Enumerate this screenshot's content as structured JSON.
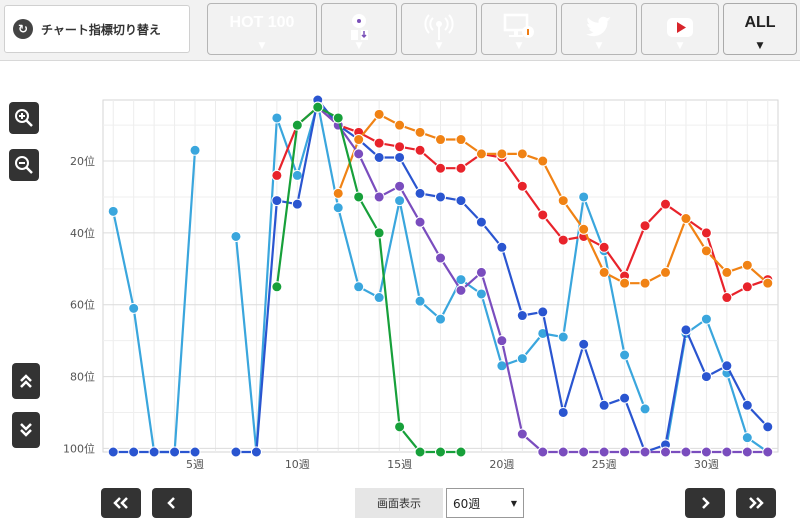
{
  "toolbar": {
    "switch_label": "チャート指標切り替え",
    "buttons": [
      {
        "key": "hot100",
        "label": "HOT 100",
        "color": "#2b4fd6",
        "icon": "text"
      },
      {
        "key": "sales",
        "label": "",
        "color": "#7a50b8",
        "icon": "cd-download-icon"
      },
      {
        "key": "radio",
        "label": "",
        "color": "#1fa23a",
        "icon": "radio-tower-icon"
      },
      {
        "key": "pc",
        "label": "",
        "color": "#ef7d14",
        "icon": "pc-lookup-icon"
      },
      {
        "key": "twitter",
        "label": "",
        "color": "#2aa3e6",
        "icon": "twitter-bird-icon"
      },
      {
        "key": "youtube",
        "label": "",
        "color": "#d8242b",
        "icon": "youtube-play-icon"
      },
      {
        "key": "all",
        "label": "ALL",
        "color": "#ffffff",
        "icon": "text"
      }
    ]
  },
  "controls": {
    "display_label": "画面表示",
    "period_value": "60週",
    "first_label": "«",
    "prev_label": "‹",
    "next_label": "›",
    "last_label": "»"
  },
  "chart_data": {
    "type": "line",
    "title": "",
    "xlabel": "",
    "ylabel": "",
    "x_ticks": [
      "5週",
      "10週",
      "15週",
      "20週",
      "25週",
      "30週"
    ],
    "y_ticks": [
      "20位",
      "40位",
      "60位",
      "80位",
      "100位"
    ],
    "xlim": [
      0.5,
      33.5
    ],
    "ylim": [
      101,
      3
    ],
    "x_unit": "週",
    "y_unit": "位",
    "y_inverted": true,
    "grid": true,
    "series": [
      {
        "color": "#3aa6dd",
        "x": [
          1,
          2,
          3,
          4,
          5,
          null,
          7,
          8,
          9,
          10,
          11,
          12,
          13,
          14,
          15,
          16,
          17,
          18,
          19,
          20,
          21,
          22,
          23,
          24,
          25,
          26,
          27
        ],
        "values": [
          34,
          61,
          101,
          101,
          17,
          null,
          41,
          101,
          8,
          24,
          4,
          33,
          55,
          58,
          31,
          59,
          64,
          53,
          57,
          77,
          75,
          68,
          69,
          30,
          45,
          74,
          89
        ]
      },
      {
        "color": "#3aa6dd",
        "x": [
          28,
          29,
          30,
          31,
          32,
          33
        ],
        "values": [
          101,
          68,
          64,
          79,
          97,
          101
        ]
      },
      {
        "color": "#2a55d0",
        "x": [
          1,
          2,
          3,
          4,
          5,
          null,
          7,
          8,
          9,
          10,
          11,
          12,
          13,
          14,
          15,
          16,
          17,
          18,
          19,
          20,
          21,
          22,
          23,
          24,
          25,
          26,
          27,
          28,
          29,
          30,
          31,
          32,
          33
        ],
        "values": [
          101,
          101,
          101,
          101,
          101,
          null,
          101,
          101,
          31,
          32,
          3,
          10,
          14,
          19,
          19,
          29,
          30,
          31,
          37,
          44,
          63,
          62,
          90,
          71,
          88,
          86,
          101,
          99,
          67,
          80,
          77,
          88,
          94
        ]
      },
      {
        "color": "#e8232b",
        "x": [
          9,
          10,
          11,
          12,
          13,
          14,
          15,
          16,
          17,
          18,
          19,
          20,
          21,
          22,
          23,
          24,
          25,
          26,
          27,
          28,
          29,
          30,
          31,
          32,
          33
        ],
        "values": [
          24,
          10,
          5,
          10,
          12,
          15,
          16,
          17,
          22,
          22,
          18,
          19,
          27,
          35,
          42,
          41,
          44,
          52,
          38,
          32,
          36,
          40,
          58,
          55,
          53
        ]
      },
      {
        "color": "#f08214",
        "x": [
          12,
          13,
          14,
          15,
          16,
          17,
          18,
          19,
          20,
          21,
          22,
          23,
          24,
          25,
          26,
          27,
          28,
          29,
          30,
          31,
          32,
          33
        ],
        "values": [
          29,
          14,
          7,
          10,
          12,
          14,
          14,
          18,
          18,
          18,
          20,
          31,
          39,
          51,
          54,
          54,
          51,
          36,
          45,
          51,
          49,
          54
        ]
      },
      {
        "color": "#7a4dbe",
        "x": [
          11,
          12,
          13,
          14,
          15,
          16,
          17,
          18,
          19,
          20,
          21,
          22,
          23,
          24,
          25,
          26,
          27,
          28,
          29,
          30,
          31,
          32,
          33
        ],
        "values": [
          5,
          10,
          18,
          30,
          27,
          37,
          47,
          56,
          51,
          70,
          96,
          101,
          101,
          101,
          101,
          101,
          101,
          101,
          101,
          101,
          101,
          101,
          101
        ]
      },
      {
        "color": "#17a03a",
        "x": [
          9,
          10,
          11,
          12,
          13,
          14,
          15,
          16,
          17,
          18
        ],
        "values": [
          55,
          10,
          5,
          8,
          30,
          40,
          94,
          101,
          101,
          101
        ]
      }
    ]
  }
}
